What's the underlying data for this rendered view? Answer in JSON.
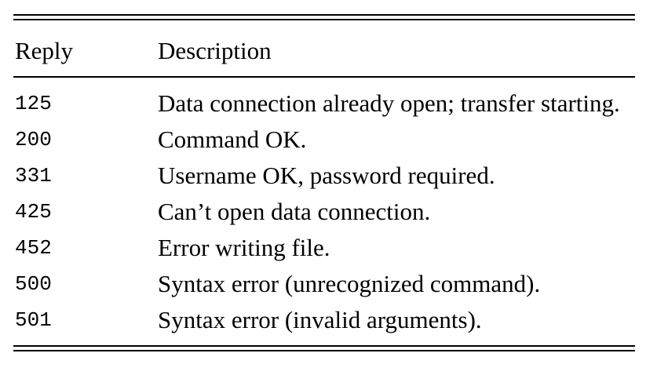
{
  "table": {
    "headers": {
      "reply": "Reply",
      "description": "Description"
    },
    "rows": [
      {
        "code": "125",
        "description": "Data connection already open; transfer starting."
      },
      {
        "code": "200",
        "description": "Command OK."
      },
      {
        "code": "331",
        "description": "Username OK, password required."
      },
      {
        "code": "425",
        "description": "Can’t open data connection."
      },
      {
        "code": "452",
        "description": "Error writing file."
      },
      {
        "code": "500",
        "description": "Syntax error (unrecognized command)."
      },
      {
        "code": "501",
        "description": "Syntax error (invalid arguments)."
      }
    ]
  }
}
